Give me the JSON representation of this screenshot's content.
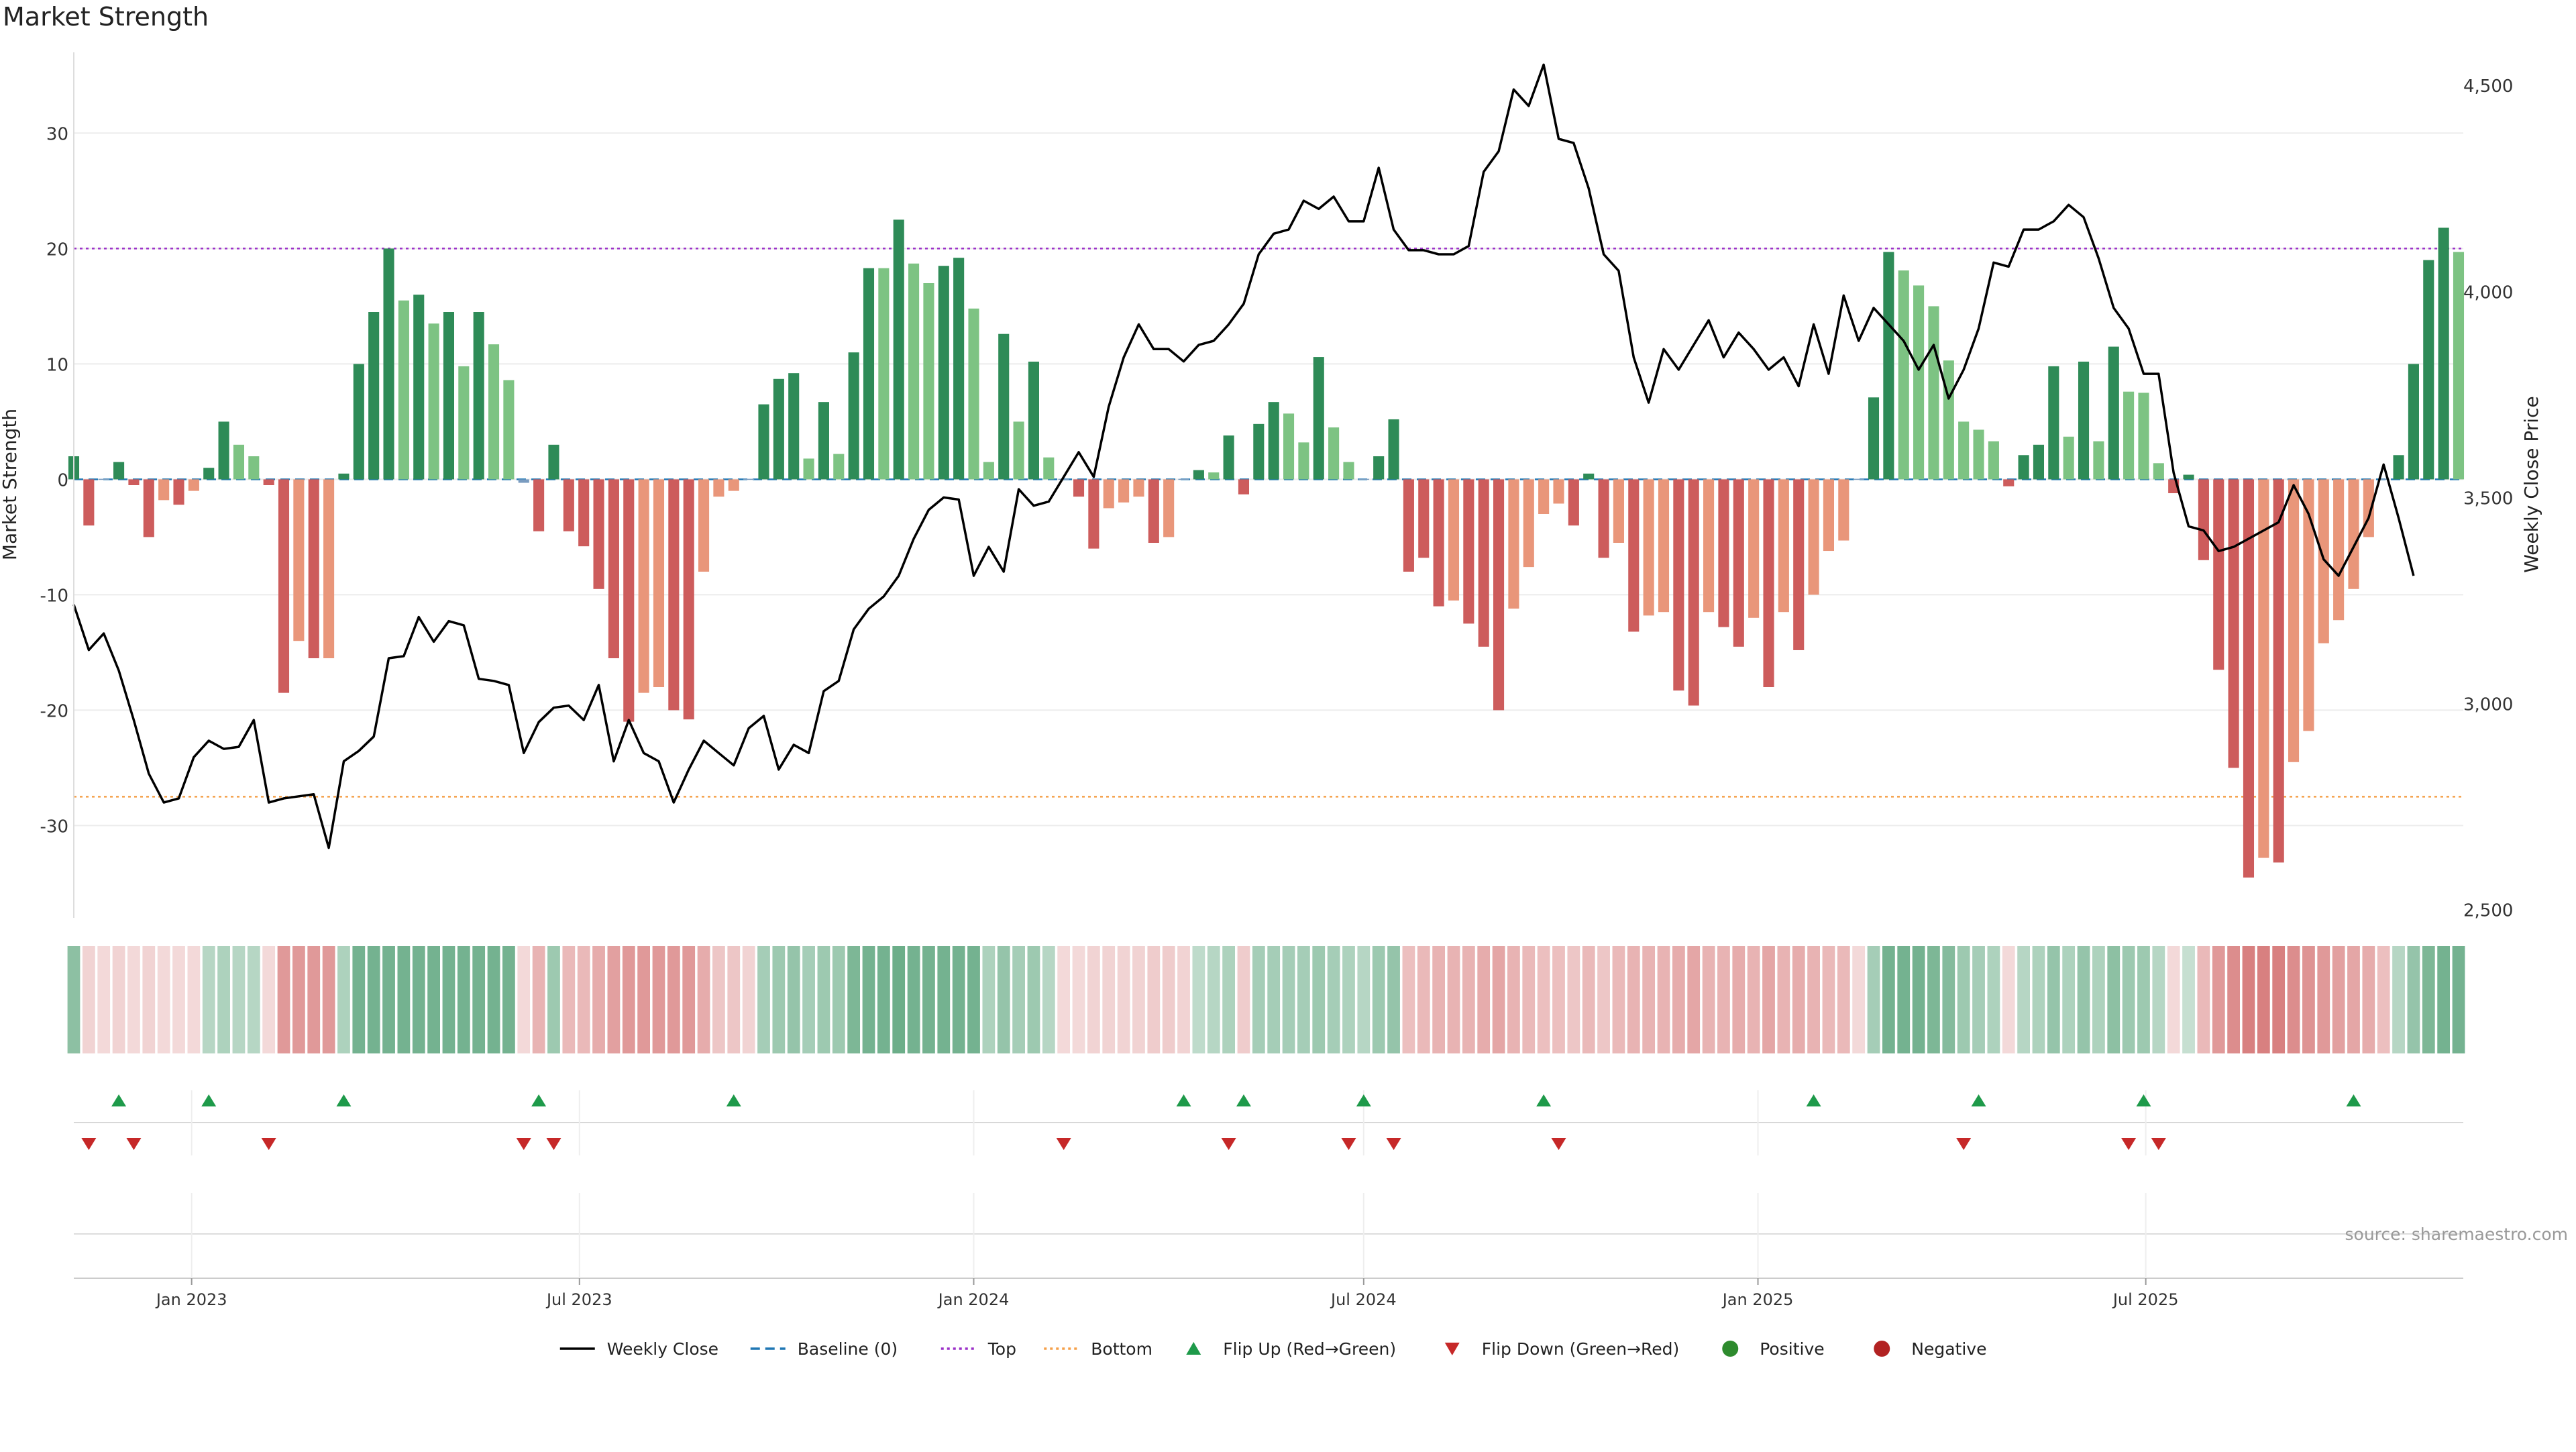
{
  "title": "Market Strength",
  "source_note": "source: sharemaestro.com",
  "colors": {
    "strong_green": "#2e8b57",
    "light_green": "#7dc383",
    "strong_red": "#cd5c5c",
    "light_red": "#e9967a",
    "price_line": "#000000",
    "baseline": "#1f77b4",
    "top_line": "#9b30c8",
    "bottom_line": "#f5a04a",
    "flip_up": "#1e9a4a",
    "flip_down": "#c62828",
    "positive": "#2e8b2e",
    "negative": "#b22222",
    "grid": "#ececec"
  },
  "chart_data": {
    "type": "bar",
    "x_start": "2022-11-07",
    "x_interval_days": 7,
    "x_tick_labels": [
      "Jan 2023",
      "Jul 2023",
      "Jan 2024",
      "Jul 2024",
      "Jan 2025",
      "Jul 2025"
    ],
    "x_tick_dates": [
      "2023-01-01",
      "2023-07-01",
      "2024-01-01",
      "2024-07-01",
      "2025-01-01",
      "2025-07-01"
    ],
    "y_left": {
      "label": "Market Strength",
      "range": [
        -38,
        37
      ],
      "ticks": [
        -30,
        -20,
        -10,
        0,
        10,
        20,
        30
      ]
    },
    "y_right": {
      "label": "Weekly Close Price",
      "range": [
        2480,
        4580
      ],
      "ticks": [
        2500,
        3000,
        3500,
        4000,
        4500
      ],
      "tick_labels": [
        "2,500",
        "3,000",
        "3,500",
        "4,000",
        "4,500"
      ]
    },
    "top_level": 20,
    "bottom_level": -27.5,
    "baseline_level": 0,
    "strength_series": {
      "name": "Market Strength",
      "values": [
        2,
        -4,
        0,
        1.5,
        -0.5,
        -5,
        -1.8,
        -2.2,
        -1,
        1,
        5,
        3,
        2,
        -0.5,
        -18.5,
        -14,
        -15.5,
        -15.5,
        0.5,
        10,
        14.5,
        20,
        15.5,
        16,
        13.5,
        14.5,
        9.8,
        14.5,
        11.7,
        8.6,
        -0.3,
        -4.5,
        3,
        -4.5,
        -5.8,
        -9.5,
        -15.5,
        -21,
        -18.5,
        -18,
        -20,
        -20.8,
        -8,
        -1.5,
        -1,
        0,
        6.5,
        8.7,
        9.2,
        1.8,
        6.7,
        2.2,
        11,
        18.3,
        18.3,
        22.5,
        18.7,
        17,
        18.5,
        19.2,
        14.8,
        1.5,
        12.6,
        5,
        10.2,
        1.9,
        0,
        -1.5,
        -6,
        -2.5,
        -2,
        -1.5,
        -5.5,
        -5,
        0,
        0.8,
        0.6,
        3.8,
        -1.3,
        4.8,
        6.7,
        5.7,
        3.2,
        10.6,
        4.5,
        1.5,
        0,
        2,
        5.2,
        -8,
        -6.8,
        -11,
        -10.5,
        -12.5,
        -14.5,
        -20,
        -11.2,
        -7.6,
        -3,
        -2.1,
        -4,
        0.5,
        -6.8,
        -5.5,
        -13.2,
        -11.8,
        -11.5,
        -18.3,
        -19.6,
        -11.5,
        -12.8,
        -14.5,
        -12,
        -18,
        -11.5,
        -14.8,
        -10,
        -6.2,
        -5.3,
        0,
        7.1,
        19.7,
        18.1,
        16.8,
        15,
        10.3,
        5,
        4.3,
        3.3,
        -0.6,
        2.1,
        3,
        9.8,
        3.7,
        10.2,
        3.3,
        11.5,
        7.6,
        7.5,
        1.4,
        -1.2,
        0.4,
        -7,
        -16.5,
        -25,
        -34.5,
        -32.8,
        -33.2,
        -24.5,
        -21.8,
        -14.2,
        -12.2,
        -9.5,
        -5,
        0,
        2.1,
        10,
        19,
        21.8,
        19.7
      ],
      "tones": [
        "sg",
        "sr",
        "n",
        "sg",
        "sr",
        "sr",
        "lr",
        "sr",
        "lr",
        "sg",
        "sg",
        "lg",
        "lg",
        "sr",
        "sr",
        "lr",
        "sr",
        "lr",
        "sg",
        "sg",
        "sg",
        "sg",
        "lg",
        "sg",
        "lg",
        "sg",
        "lg",
        "sg",
        "lg",
        "lg",
        "n",
        "sr",
        "sg",
        "sr",
        "sr",
        "sr",
        "sr",
        "sr",
        "lr",
        "lr",
        "sr",
        "sr",
        "lr",
        "lr",
        "lr",
        "n",
        "sg",
        "sg",
        "sg",
        "lg",
        "sg",
        "lg",
        "sg",
        "sg",
        "lg",
        "sg",
        "lg",
        "lg",
        "sg",
        "sg",
        "lg",
        "lg",
        "sg",
        "lg",
        "sg",
        "lg",
        "n",
        "sr",
        "sr",
        "lr",
        "lr",
        "lr",
        "sr",
        "lr",
        "n",
        "sg",
        "lg",
        "sg",
        "sr",
        "sg",
        "sg",
        "lg",
        "lg",
        "sg",
        "lg",
        "lg",
        "n",
        "sg",
        "sg",
        "sr",
        "sr",
        "sr",
        "lr",
        "sr",
        "sr",
        "sr",
        "lr",
        "lr",
        "lr",
        "lr",
        "sr",
        "sg",
        "sr",
        "lr",
        "sr",
        "lr",
        "lr",
        "sr",
        "sr",
        "lr",
        "sr",
        "sr",
        "lr",
        "sr",
        "lr",
        "sr",
        "lr",
        "lr",
        "lr",
        "n",
        "sg",
        "sg",
        "lg",
        "lg",
        "lg",
        "lg",
        "lg",
        "lg",
        "lg",
        "sr",
        "sg",
        "sg",
        "sg",
        "lg",
        "sg",
        "lg",
        "sg",
        "lg",
        "lg",
        "lg",
        "sr",
        "sg",
        "sr",
        "sr",
        "sr",
        "sr",
        "lr",
        "sr",
        "lr",
        "lr",
        "lr",
        "lr",
        "lr",
        "lr",
        "n",
        "sg",
        "sg",
        "sg",
        "sg",
        "lg"
      ]
    },
    "price_series": {
      "name": "Weekly Close",
      "values": [
        3240,
        3130,
        3170,
        3080,
        2960,
        2830,
        2760,
        2770,
        2870,
        2910,
        2890,
        2895,
        2960,
        2760,
        2770,
        2775,
        2780,
        2650,
        2860,
        2885,
        2920,
        3110,
        3115,
        3210,
        3150,
        3200,
        3190,
        3060,
        3055,
        3045,
        2880,
        2955,
        2990,
        2995,
        2960,
        3045,
        2860,
        2960,
        2880,
        2860,
        2760,
        2840,
        2910,
        2880,
        2850,
        2940,
        2970,
        2840,
        2900,
        2880,
        3030,
        3055,
        3180,
        3230,
        3260,
        3310,
        3400,
        3470,
        3500,
        3495,
        3310,
        3380,
        3320,
        3520,
        3480,
        3490,
        3550,
        3610,
        3550,
        3720,
        3840,
        3920,
        3860,
        3860,
        3830,
        3870,
        3880,
        3920,
        3970,
        4090,
        4140,
        4150,
        4220,
        4200,
        4230,
        4170,
        4170,
        4300,
        4150,
        4100,
        4100,
        4090,
        4090,
        4110,
        4290,
        4340,
        4490,
        4450,
        4550,
        4370,
        4360,
        4250,
        4090,
        4050,
        3840,
        3730,
        3860,
        3810,
        3870,
        3930,
        3840,
        3900,
        3860,
        3810,
        3840,
        3770,
        3920,
        3800,
        3990,
        3880,
        3960,
        3920,
        3880,
        3810,
        3870,
        3740,
        3810,
        3910,
        4070,
        4060,
        4150,
        4150,
        4170,
        4210,
        4180,
        4080,
        3960,
        3910,
        3800,
        3800,
        3560,
        3430,
        3420,
        3370,
        3380,
        3400,
        3420,
        3440,
        3530,
        3460,
        3350,
        3310,
        3380,
        3450,
        3580,
        3450,
        3310
      ],
      "color": "#000000"
    },
    "heat_strip": {
      "levels": [
        0.7,
        0.35,
        0.3,
        0.35,
        0.3,
        0.35,
        0.3,
        0.3,
        0.3,
        0.45,
        0.5,
        0.45,
        0.45,
        0.3,
        0.8,
        0.8,
        0.8,
        0.8,
        0.5,
        0.85,
        0.85,
        0.85,
        0.85,
        0.85,
        0.85,
        0.85,
        0.85,
        0.85,
        0.85,
        0.85,
        0.3,
        0.6,
        0.6,
        0.55,
        0.55,
        0.65,
        0.75,
        0.8,
        0.8,
        0.8,
        0.8,
        0.8,
        0.65,
        0.45,
        0.45,
        0.35,
        0.55,
        0.6,
        0.65,
        0.55,
        0.6,
        0.6,
        0.8,
        0.85,
        0.85,
        0.9,
        0.85,
        0.85,
        0.85,
        0.85,
        0.85,
        0.5,
        0.65,
        0.55,
        0.6,
        0.45,
        0.3,
        0.3,
        0.35,
        0.35,
        0.35,
        0.35,
        0.4,
        0.4,
        0.35,
        0.4,
        0.45,
        0.5,
        0.4,
        0.55,
        0.55,
        0.55,
        0.55,
        0.6,
        0.55,
        0.5,
        0.45,
        0.6,
        0.65,
        0.5,
        0.55,
        0.6,
        0.6,
        0.6,
        0.65,
        0.7,
        0.6,
        0.55,
        0.5,
        0.5,
        0.45,
        0.55,
        0.45,
        0.55,
        0.6,
        0.6,
        0.6,
        0.65,
        0.7,
        0.6,
        0.6,
        0.65,
        0.6,
        0.7,
        0.6,
        0.65,
        0.6,
        0.55,
        0.55,
        0.3,
        0.55,
        0.85,
        0.85,
        0.85,
        0.8,
        0.75,
        0.6,
        0.55,
        0.5,
        0.3,
        0.45,
        0.5,
        0.65,
        0.5,
        0.65,
        0.5,
        0.7,
        0.6,
        0.6,
        0.45,
        0.3,
        0.35,
        0.55,
        0.8,
        0.9,
        1.0,
        1.0,
        1.0,
        0.9,
        0.85,
        0.8,
        0.75,
        0.7,
        0.65,
        0.5,
        0.45,
        0.65,
        0.8,
        0.85,
        0.85
      ],
      "signs": [
        "+",
        "-",
        "-",
        "-",
        "-",
        "-",
        "-",
        "-",
        "-",
        "+",
        "+",
        "+",
        "+",
        "-",
        "-",
        "-",
        "-",
        "-",
        "+",
        "+",
        "+",
        "+",
        "+",
        "+",
        "+",
        "+",
        "+",
        "+",
        "+",
        "+",
        "-",
        "-",
        "+",
        "-",
        "-",
        "-",
        "-",
        "-",
        "-",
        "-",
        "-",
        "-",
        "-",
        "-",
        "-",
        "-",
        "+",
        "+",
        "+",
        "+",
        "+",
        "+",
        "+",
        "+",
        "+",
        "+",
        "+",
        "+",
        "+",
        "+",
        "+",
        "+",
        "+",
        "+",
        "+",
        "+",
        "-",
        "-",
        "-",
        "-",
        "-",
        "-",
        "-",
        "-",
        "-",
        "+",
        "+",
        "+",
        "-",
        "+",
        "+",
        "+",
        "+",
        "+",
        "+",
        "+",
        "+",
        "+",
        "+",
        "-",
        "-",
        "-",
        "-",
        "-",
        "-",
        "-",
        "-",
        "-",
        "-",
        "-",
        "-",
        "-",
        "-",
        "-",
        "-",
        "-",
        "-",
        "-",
        "-",
        "-",
        "-",
        "-",
        "-",
        "-",
        "-",
        "-",
        "-",
        "-",
        "-",
        "-",
        "+",
        "+",
        "+",
        "+",
        "+",
        "+",
        "+",
        "+",
        "+",
        "-",
        "+",
        "+",
        "+",
        "+",
        "+",
        "+",
        "+",
        "+",
        "+",
        "+",
        "-",
        "+",
        "-",
        "-",
        "-",
        "-",
        "-",
        "-",
        "-",
        "-",
        "-",
        "-",
        "-",
        "-",
        "-",
        "+",
        "+",
        "+",
        "+",
        "+"
      ]
    },
    "flip_up_weeks": [
      3,
      9,
      18,
      31,
      44,
      74,
      78,
      86,
      98,
      116,
      127,
      138,
      152
    ],
    "flip_down_weeks": [
      1,
      4,
      13,
      30,
      32,
      66,
      77,
      85,
      88,
      99,
      126,
      137,
      139
    ],
    "legend_position": "bottom-center"
  },
  "legend": [
    {
      "label": "Weekly Close",
      "kind": "line",
      "color": "#000000",
      "dash": ""
    },
    {
      "label": "Baseline (0)",
      "kind": "line",
      "color": "#1f77b4",
      "dash": "14,8"
    },
    {
      "label": "Top",
      "kind": "line",
      "color": "#9b30c8",
      "dash": "4,5"
    },
    {
      "label": "Bottom",
      "kind": "line",
      "color": "#f5a04a",
      "dash": "4,5"
    },
    {
      "label": "Flip Up (Red→Green)",
      "kind": "tri-up",
      "color": "#1e9a4a"
    },
    {
      "label": "Flip Down (Green→Red)",
      "kind": "tri-down",
      "color": "#c62828"
    },
    {
      "label": "Positive",
      "kind": "dot",
      "color": "#2e8b2e"
    },
    {
      "label": "Negative",
      "kind": "dot",
      "color": "#b22222"
    }
  ]
}
